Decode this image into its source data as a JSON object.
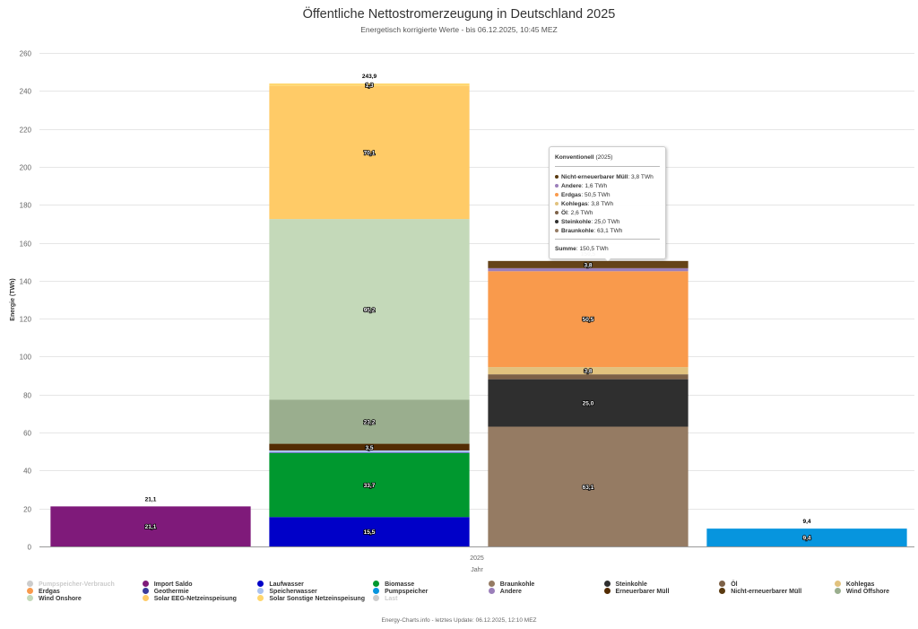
{
  "chart_data": {
    "type": "bar",
    "stacked": true,
    "title": "Öffentliche Nettostromerzeugung in Deutschland 2025",
    "subtitle": "Energetisch korrigierte Werte - bis 06.12.2025, 10:45 MEZ",
    "xlabel": "Jahr",
    "ylabel": "Energie (TWh)",
    "x_category": "2025",
    "ylim": [
      0,
      260
    ],
    "yticks": [
      0,
      20,
      40,
      60,
      80,
      100,
      120,
      140,
      160,
      180,
      200,
      220,
      240,
      260
    ],
    "grid": true,
    "legend_position": "bottom",
    "groups": [
      {
        "name": "Import Saldo",
        "total_label": "21,1",
        "segments": [
          {
            "name": "Import Saldo",
            "value": 21.1,
            "label": "21,1",
            "color": "#7f1a7a"
          }
        ]
      },
      {
        "name": "Erneuerbar",
        "total_label": "243,9",
        "segments": [
          {
            "name": "Laufwasser",
            "value": 15.5,
            "label": "15,5",
            "color": "#0000c8"
          },
          {
            "name": "Biomasse",
            "value": 33.7,
            "label": "33,7",
            "color": "#00982f"
          },
          {
            "name": "Geothermie",
            "value": 0.2,
            "label": "",
            "color": "#3b3b9b"
          },
          {
            "name": "Speicherwasser",
            "value": 1.2,
            "label": "",
            "color": "#a9c2f0"
          },
          {
            "name": "Erneuerbarer Müll",
            "value": 3.5,
            "label": "3,5",
            "color": "#532c03"
          },
          {
            "name": "Wind Offshore",
            "value": 23.2,
            "label": "23,2",
            "color": "#9aae8e"
          },
          {
            "name": "Wind Onshore",
            "value": 95.2,
            "label": "95,2",
            "color": "#c4d9b9"
          },
          {
            "name": "Solar EEG-Netzeinspeisung",
            "value": 70.1,
            "label": "70,1",
            "color": "#ffcb67"
          },
          {
            "name": "Solar Sonstige Netzeinspeisung",
            "value": 1.3,
            "label": "1,3",
            "color": "#ffd76e"
          }
        ]
      },
      {
        "name": "Konventionell",
        "total_label": "150,5",
        "segments": [
          {
            "name": "Braunkohle",
            "value": 63.1,
            "label": "63,1",
            "color": "#957b63"
          },
          {
            "name": "Steinkohle",
            "value": 25.0,
            "label": "25,0",
            "color": "#2f2f2f"
          },
          {
            "name": "Öl",
            "value": 2.6,
            "label": "",
            "color": "#7d6147"
          },
          {
            "name": "Kohlegas",
            "value": 3.8,
            "label": "3,8",
            "color": "#e1c27e"
          },
          {
            "name": "Erdgas",
            "value": 50.5,
            "label": "50,5",
            "color": "#f99a4c"
          },
          {
            "name": "Andere",
            "value": 1.6,
            "label": "",
            "color": "#9b7fba"
          },
          {
            "name": "Nicht-erneuerbarer Müll",
            "value": 3.8,
            "label": "3,8",
            "color": "#654318"
          }
        ]
      },
      {
        "name": "Pumpspeicher",
        "total_label": "9,4",
        "segments": [
          {
            "name": "Pumpspeicher",
            "value": 9.4,
            "label": "9,4",
            "color": "#0795de"
          }
        ]
      }
    ]
  },
  "tooltip": {
    "title": "Konventionell",
    "title_suffix": "(2025)",
    "rows": [
      {
        "name": "Nicht-erneuerbarer Müll",
        "value": "3,8 TWh",
        "color": "#5a3a10"
      },
      {
        "name": "Andere",
        "value": "1,6 TWh",
        "color": "#9b7fba"
      },
      {
        "name": "Erdgas",
        "value": "50,5 TWh",
        "color": "#f99a4c"
      },
      {
        "name": "Kohlegas",
        "value": "3,8 TWh",
        "color": "#e1c27e"
      },
      {
        "name": "Öl",
        "value": "2,6 TWh",
        "color": "#7d6147"
      },
      {
        "name": "Steinkohle",
        "value": "25,0 TWh",
        "color": "#2f2f2f"
      },
      {
        "name": "Braunkohle",
        "value": "63,1 TWh",
        "color": "#957b63"
      }
    ],
    "sum_label": "Summe",
    "sum_value": "150,5 TWh"
  },
  "legend": [
    {
      "name": "Pumpspeicher-Verbrauch",
      "color": "#cccccc",
      "hidden": true
    },
    {
      "name": "Import Saldo",
      "color": "#7f1a7a"
    },
    {
      "name": "Laufwasser",
      "color": "#0000c8"
    },
    {
      "name": "Biomasse",
      "color": "#00982f"
    },
    {
      "name": "Braunkohle",
      "color": "#957b63"
    },
    {
      "name": "Steinkohle",
      "color": "#2f2f2f"
    },
    {
      "name": "Öl",
      "color": "#7d6147"
    },
    {
      "name": "Kohlegas",
      "color": "#e1c27e"
    },
    {
      "name": "Erdgas",
      "color": "#f99a4c"
    },
    {
      "name": "Geothermie",
      "color": "#3b3b9b"
    },
    {
      "name": "Speicherwasser",
      "color": "#a9c2f0"
    },
    {
      "name": "Pumpspeicher",
      "color": "#0795de"
    },
    {
      "name": "Andere",
      "color": "#9b7fba"
    },
    {
      "name": "Erneuerbarer Müll",
      "color": "#532c03"
    },
    {
      "name": "Nicht-erneuerbarer Müll",
      "color": "#5a3a10"
    },
    {
      "name": "Wind Offshore",
      "color": "#9aae8e"
    },
    {
      "name": "Wind Onshore",
      "color": "#c4d9b9"
    },
    {
      "name": "Solar EEG-Netzeinspeisung",
      "color": "#ffcb67"
    },
    {
      "name": "Solar Sonstige Netzeinspeisung",
      "color": "#ffd76e"
    },
    {
      "name": "Last",
      "color": "#cccccc",
      "hidden": true
    }
  ],
  "footer": "Energy-Charts.info - letztes Update: 06.12.2025, 12:10 MEZ"
}
